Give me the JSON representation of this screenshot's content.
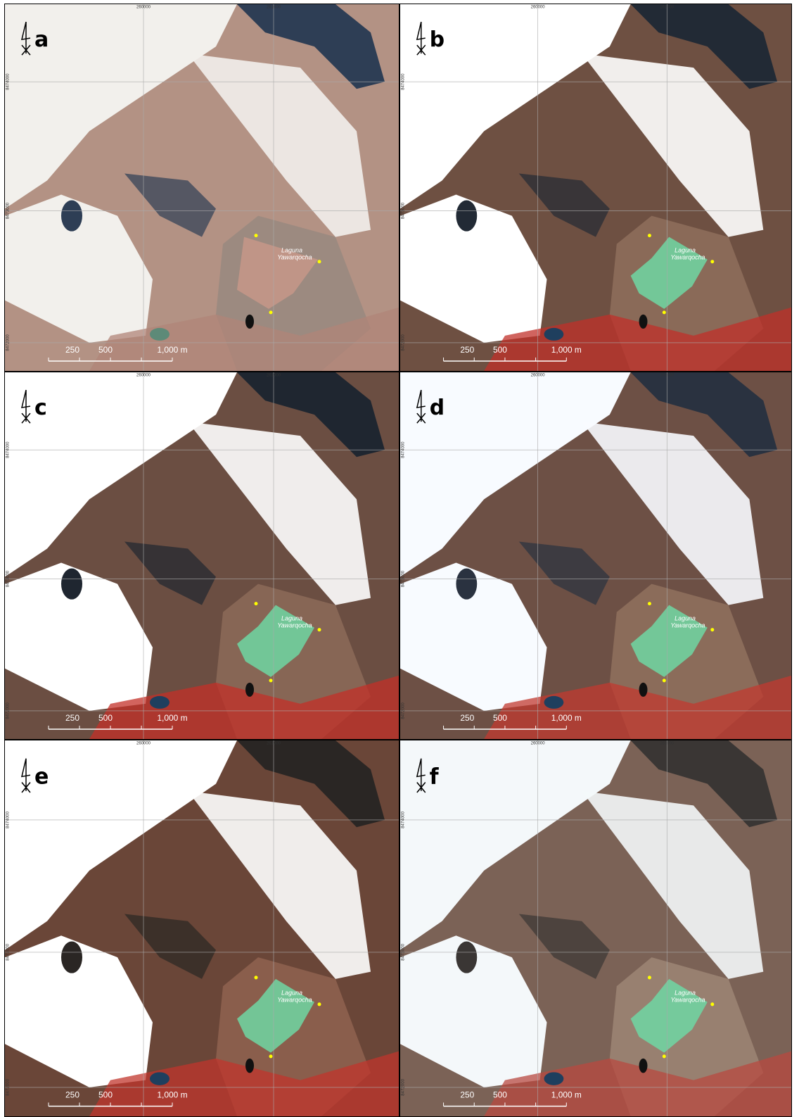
{
  "panels": [
    {
      "letter": "a",
      "lake_label": [
        "Laguna",
        "Yawarqocha"
      ]
    },
    {
      "letter": "b",
      "lake_label": [
        "Laguna",
        "Yawarqocha"
      ]
    },
    {
      "letter": "c",
      "lake_label": [
        "Laguna",
        "Yawarqocha"
      ]
    },
    {
      "letter": "d",
      "lake_label": [
        "Laguna",
        "Yawarqocha"
      ]
    },
    {
      "letter": "e",
      "lake_label": [
        "Laguna",
        "Yawarqocha"
      ]
    },
    {
      "letter": "f",
      "lake_label": [
        "Laguna",
        "Yawarqocha"
      ]
    }
  ],
  "grid": {
    "x_labels": [
      "260000",
      "261000"
    ],
    "y_labels": [
      "8474000",
      "8473000",
      "8472000"
    ]
  },
  "scale_bar": {
    "labels": [
      "250",
      "500",
      "1,000 m"
    ]
  }
}
